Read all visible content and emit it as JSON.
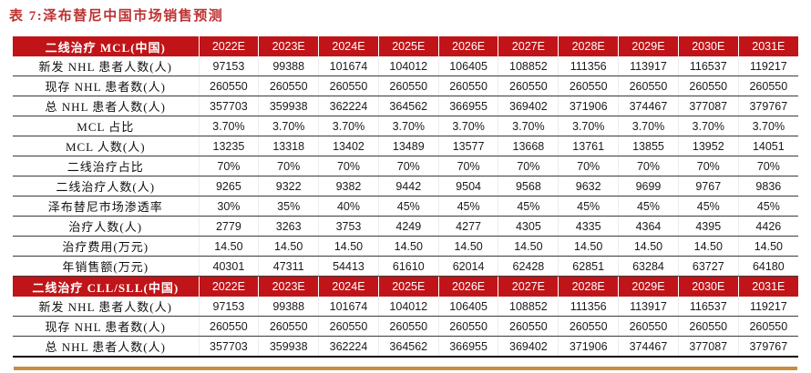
{
  "title": "表 7:泽布替尼中国市场销售预测",
  "colors": {
    "header_bg": "#c01418",
    "title_red": "#be3232",
    "accent_bar": "#c98c41"
  },
  "years": [
    "2022E",
    "2023E",
    "2024E",
    "2025E",
    "2026E",
    "2027E",
    "2028E",
    "2029E",
    "2030E",
    "2031E"
  ],
  "sections": [
    {
      "header": "二线治疗 MCL(中国)",
      "rows": [
        {
          "label": "新发 NHL 患者人数(人)",
          "values": [
            "97153",
            "99388",
            "101674",
            "104012",
            "106405",
            "108852",
            "111356",
            "113917",
            "116537",
            "119217"
          ]
        },
        {
          "label": "现存 NHL 患者数(人)",
          "values": [
            "260550",
            "260550",
            "260550",
            "260550",
            "260550",
            "260550",
            "260550",
            "260550",
            "260550",
            "260550"
          ]
        },
        {
          "label": "总 NHL 患者人数(人)",
          "values": [
            "357703",
            "359938",
            "362224",
            "364562",
            "366955",
            "369402",
            "371906",
            "374467",
            "377087",
            "379767"
          ]
        },
        {
          "label": "MCL 占比",
          "values": [
            "3.70%",
            "3.70%",
            "3.70%",
            "3.70%",
            "3.70%",
            "3.70%",
            "3.70%",
            "3.70%",
            "3.70%",
            "3.70%"
          ]
        },
        {
          "label": "MCL 人数(人)",
          "values": [
            "13235",
            "13318",
            "13402",
            "13489",
            "13577",
            "13668",
            "13761",
            "13855",
            "13952",
            "14051"
          ]
        },
        {
          "label": "二线治疗占比",
          "values": [
            "70%",
            "70%",
            "70%",
            "70%",
            "70%",
            "70%",
            "70%",
            "70%",
            "70%",
            "70%"
          ]
        },
        {
          "label": "二线治疗人数(人)",
          "values": [
            "9265",
            "9322",
            "9382",
            "9442",
            "9504",
            "9568",
            "9632",
            "9699",
            "9767",
            "9836"
          ]
        },
        {
          "label": "泽布替尼市场渗透率",
          "values": [
            "30%",
            "35%",
            "40%",
            "45%",
            "45%",
            "45%",
            "45%",
            "45%",
            "45%",
            "45%"
          ]
        },
        {
          "label": "治疗人数(人)",
          "values": [
            "2779",
            "3263",
            "3753",
            "4249",
            "4277",
            "4305",
            "4335",
            "4364",
            "4395",
            "4426"
          ]
        },
        {
          "label": "治疗费用(万元)",
          "values": [
            "14.50",
            "14.50",
            "14.50",
            "14.50",
            "14.50",
            "14.50",
            "14.50",
            "14.50",
            "14.50",
            "14.50"
          ]
        },
        {
          "label": "年销售额(万元)",
          "values": [
            "40301",
            "47311",
            "54413",
            "61610",
            "62014",
            "62428",
            "62851",
            "63284",
            "63727",
            "64180"
          ]
        }
      ]
    },
    {
      "header": "二线治疗 CLL/SLL(中国)",
      "rows": [
        {
          "label": "新发 NHL 患者人数(人)",
          "values": [
            "97153",
            "99388",
            "101674",
            "104012",
            "106405",
            "108852",
            "111356",
            "113917",
            "116537",
            "119217"
          ]
        },
        {
          "label": "现存 NHL 患者数(人)",
          "values": [
            "260550",
            "260550",
            "260550",
            "260550",
            "260550",
            "260550",
            "260550",
            "260550",
            "260550",
            "260550"
          ]
        },
        {
          "label": "总 NHL 患者人数(人)",
          "values": [
            "357703",
            "359938",
            "362224",
            "364562",
            "366955",
            "369402",
            "371906",
            "374467",
            "377087",
            "379767"
          ]
        }
      ]
    }
  ]
}
